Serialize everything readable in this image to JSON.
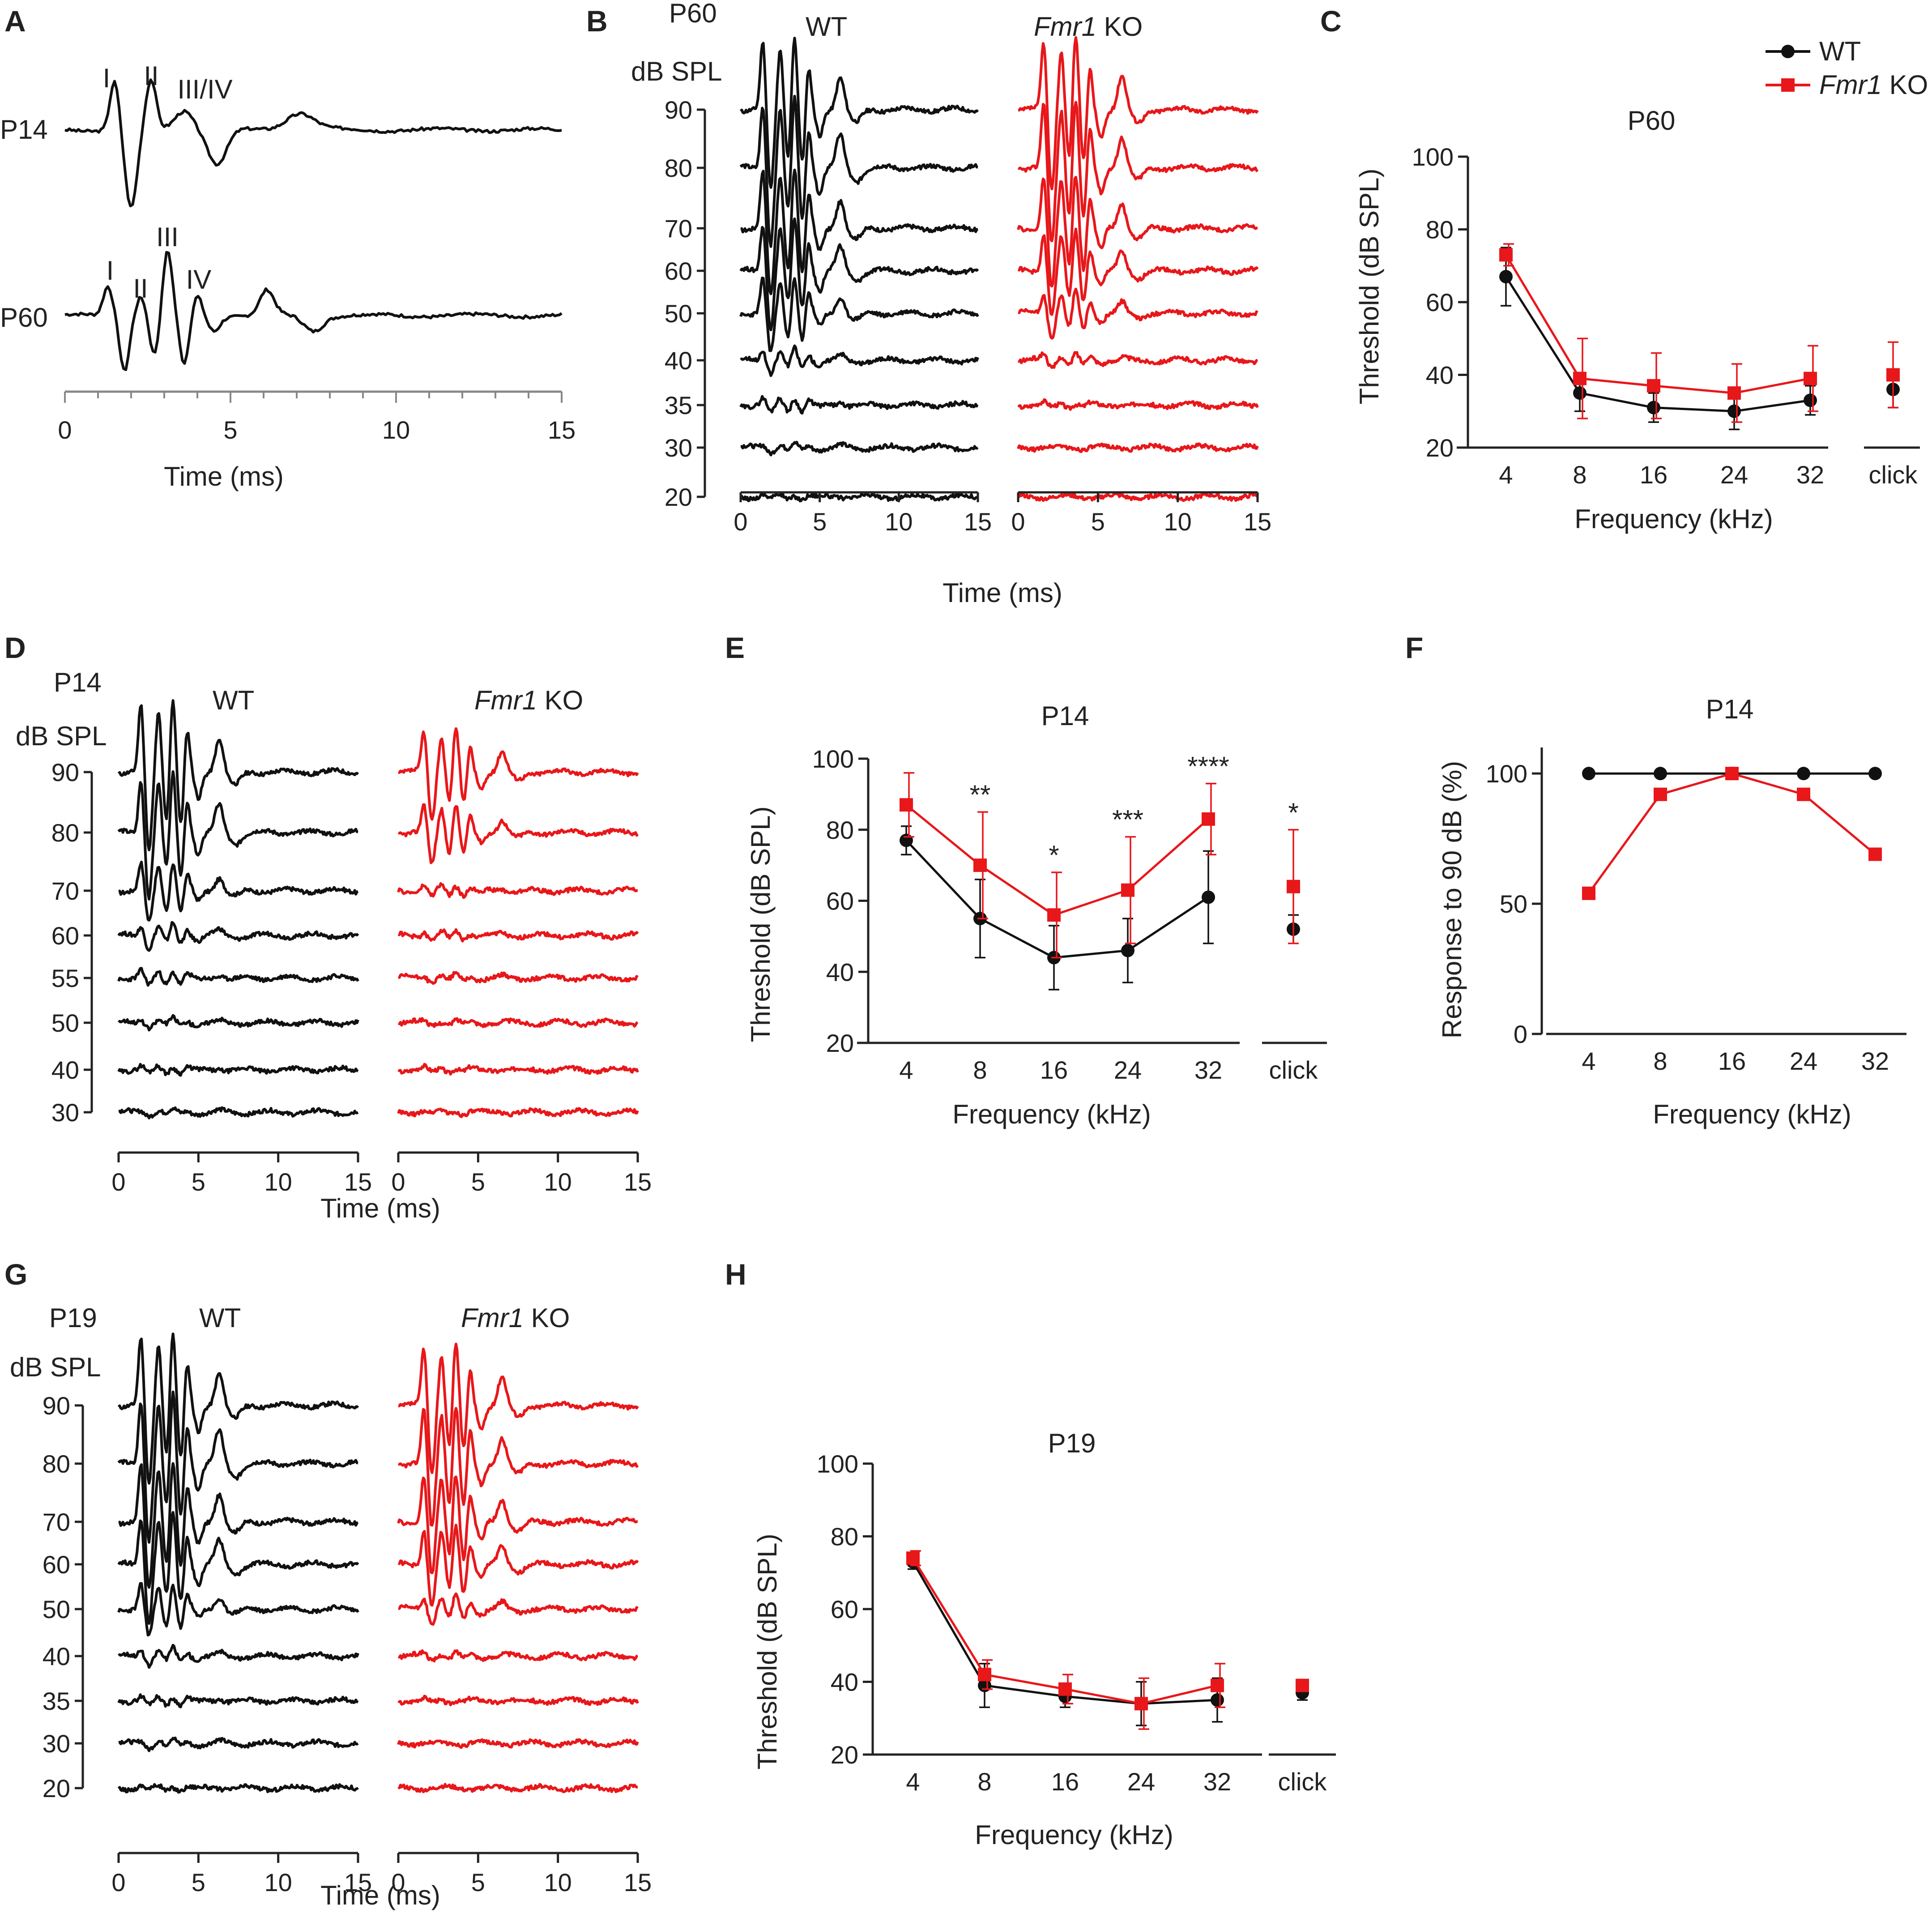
{
  "colors": {
    "wt": "#111111",
    "ko": "#e8171a",
    "axis": "#222222",
    "grey_axis": "#888888"
  },
  "legend": [
    {
      "key": "wt",
      "label": "WT",
      "italic_prefix": "",
      "rest": "WT"
    },
    {
      "key": "ko",
      "label": "Fmr1 KO",
      "italic_prefix": "Fmr1",
      "rest": " KO"
    }
  ],
  "panel_a": {
    "letter": "A",
    "traces": [
      {
        "label": "P14",
        "peaks": [
          "I",
          "II",
          "III/IV"
        ]
      },
      {
        "label": "P60",
        "peaks": [
          "I",
          "II",
          "III",
          "IV"
        ]
      }
    ],
    "xticks": [
      "0",
      "5",
      "10",
      "15"
    ],
    "xlabel": "Time (ms)"
  },
  "panel_b": {
    "letter": "B",
    "age": "P60",
    "unit": "dB SPL",
    "levels": [
      "90",
      "80",
      "70",
      "60",
      "50",
      "40",
      "35",
      "30",
      "20"
    ],
    "wt_title": "WT",
    "ko_italic": "Fmr1",
    "ko_rest": " KO",
    "xticks": [
      "0",
      "5",
      "10",
      "15"
    ],
    "xlabel": "Time (ms)"
  },
  "panel_d": {
    "letter": "D",
    "age": "P14",
    "unit": "dB SPL",
    "levels": [
      "90",
      "80",
      "70",
      "60",
      "55",
      "50",
      "40",
      "30"
    ],
    "wt_title": "WT",
    "ko_italic": "Fmr1",
    "ko_rest": " KO",
    "xticks": [
      "0",
      "5",
      "10",
      "15"
    ],
    "xlabel": "Time (ms)"
  },
  "panel_g": {
    "letter": "G",
    "age": "P19",
    "unit": "dB SPL",
    "levels": [
      "90",
      "80",
      "70",
      "60",
      "50",
      "40",
      "35",
      "30",
      "20"
    ],
    "wt_title": "WT",
    "ko_italic": "Fmr1",
    "ko_rest": " KO",
    "xticks": [
      "0",
      "5",
      "10",
      "15"
    ],
    "xlabel": "Time (ms)"
  },
  "chart_data": [
    {
      "id": "C",
      "type": "line",
      "title": "P60",
      "categories": [
        "4",
        "8",
        "16",
        "24",
        "32"
      ],
      "click_label": "click",
      "xlabel": "Frequency (kHz)",
      "ylabel": "Threshold (dB SPL)",
      "ylim": [
        20,
        100
      ],
      "yticks": [
        "20",
        "40",
        "60",
        "80",
        "100"
      ],
      "series": [
        {
          "name": "WT",
          "values": [
            67,
            35,
            31,
            30,
            33
          ],
          "errors": [
            8,
            5,
            4,
            5,
            4
          ],
          "click": 36,
          "click_err": 5
        },
        {
          "name": "Fmr1 KO",
          "values": [
            73,
            39,
            37,
            35,
            39
          ],
          "errors": [
            3,
            11,
            9,
            8,
            9
          ],
          "click": 40,
          "click_err": 9
        }
      ],
      "annotations": []
    },
    {
      "id": "E",
      "type": "line",
      "title": "P14",
      "categories": [
        "4",
        "8",
        "16",
        "24",
        "32"
      ],
      "click_label": "click",
      "xlabel": "Frequency (kHz)",
      "ylabel": "Threshold (dB SPL)",
      "ylim": [
        20,
        100
      ],
      "yticks": [
        "20",
        "40",
        "60",
        "80",
        "100"
      ],
      "series": [
        {
          "name": "WT",
          "values": [
            77,
            55,
            44,
            46,
            61
          ],
          "errors": [
            4,
            11,
            9,
            9,
            13
          ],
          "click": 52,
          "click_err": 4
        },
        {
          "name": "Fmr1 KO",
          "values": [
            87,
            70,
            56,
            63,
            83
          ],
          "errors": [
            9,
            15,
            12,
            15,
            10
          ],
          "click": 64,
          "click_err": 16
        }
      ],
      "annotations": [
        "",
        "**",
        "*",
        "***",
        "****"
      ],
      "click_annotation": "*"
    },
    {
      "id": "F",
      "type": "line",
      "title": "P14",
      "categories": [
        "4",
        "8",
        "16",
        "24",
        "32"
      ],
      "xlabel": "Frequency (kHz)",
      "ylabel": "Response to 90 dB (%)",
      "ylim": [
        0,
        110
      ],
      "yticks": [
        "0",
        "50",
        "100"
      ],
      "series": [
        {
          "name": "WT",
          "values": [
            100,
            100,
            100,
            100,
            100
          ]
        },
        {
          "name": "Fmr1 KO",
          "values": [
            54,
            92,
            100,
            92,
            69
          ]
        }
      ]
    },
    {
      "id": "H",
      "type": "line",
      "title": "P19",
      "categories": [
        "4",
        "8",
        "16",
        "24",
        "32"
      ],
      "click_label": "click",
      "xlabel": "Frequency (kHz)",
      "ylabel": "Threshold (dB SPL)",
      "ylim": [
        20,
        100
      ],
      "yticks": [
        "20",
        "40",
        "60",
        "80",
        "100"
      ],
      "series": [
        {
          "name": "WT",
          "values": [
            73,
            39,
            36,
            34,
            35
          ],
          "errors": [
            2,
            6,
            3,
            6,
            6
          ],
          "click": 37,
          "click_err": 2
        },
        {
          "name": "Fmr1 KO",
          "values": [
            74,
            42,
            38,
            34,
            39
          ],
          "errors": [
            2,
            4,
            4,
            7,
            6
          ],
          "click": 39,
          "click_err": 1
        }
      ],
      "annotations": []
    }
  ]
}
